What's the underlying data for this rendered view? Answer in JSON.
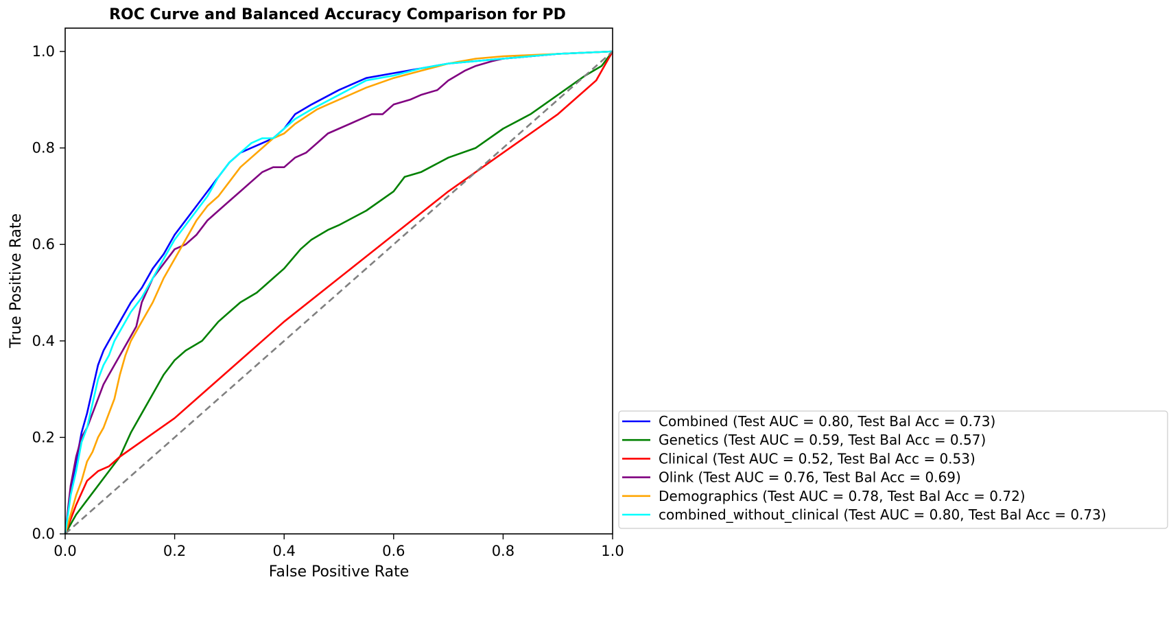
{
  "chart_data": {
    "type": "line",
    "title": "ROC Curve and Balanced Accuracy Comparison for PD",
    "xlabel": "False Positive Rate",
    "ylabel": "True Positive Rate",
    "xlim": [
      0.0,
      1.0
    ],
    "ylim": [
      0.0,
      1.0
    ],
    "xticks": [
      "0.0",
      "0.2",
      "0.4",
      "0.6",
      "0.8",
      "1.0"
    ],
    "yticks": [
      "0.0",
      "0.2",
      "0.4",
      "0.6",
      "0.8",
      "1.0"
    ],
    "grid": false,
    "legend_position": "lower-right, outside axes",
    "series": [
      {
        "name": "Combined (Test AUC = 0.80, Test Bal Acc = 0.73)",
        "color": "#0000ff",
        "x": [
          0,
          0.01,
          0.02,
          0.03,
          0.04,
          0.05,
          0.06,
          0.07,
          0.08,
          0.09,
          0.1,
          0.12,
          0.14,
          0.16,
          0.18,
          0.2,
          0.22,
          0.24,
          0.26,
          0.28,
          0.3,
          0.32,
          0.34,
          0.36,
          0.38,
          0.4,
          0.42,
          0.45,
          0.5,
          0.55,
          0.6,
          0.65,
          0.7,
          0.8,
          0.9,
          1.0
        ],
        "y": [
          0,
          0.09,
          0.15,
          0.21,
          0.25,
          0.3,
          0.35,
          0.38,
          0.4,
          0.42,
          0.44,
          0.48,
          0.51,
          0.55,
          0.58,
          0.62,
          0.65,
          0.68,
          0.71,
          0.74,
          0.77,
          0.79,
          0.8,
          0.81,
          0.82,
          0.84,
          0.87,
          0.89,
          0.92,
          0.945,
          0.955,
          0.965,
          0.975,
          0.985,
          0.995,
          1.0
        ]
      },
      {
        "name": "Genetics (Test AUC = 0.59, Test Bal Acc = 0.57)",
        "color": "#008000",
        "x": [
          0,
          0.02,
          0.04,
          0.06,
          0.08,
          0.1,
          0.12,
          0.14,
          0.16,
          0.18,
          0.2,
          0.22,
          0.25,
          0.28,
          0.3,
          0.32,
          0.35,
          0.38,
          0.4,
          0.43,
          0.45,
          0.48,
          0.5,
          0.55,
          0.6,
          0.62,
          0.65,
          0.7,
          0.75,
          0.8,
          0.85,
          0.9,
          0.95,
          0.98,
          1.0
        ],
        "y": [
          0,
          0.04,
          0.07,
          0.1,
          0.13,
          0.16,
          0.21,
          0.25,
          0.29,
          0.33,
          0.36,
          0.38,
          0.4,
          0.44,
          0.46,
          0.48,
          0.5,
          0.53,
          0.55,
          0.59,
          0.61,
          0.63,
          0.64,
          0.67,
          0.71,
          0.74,
          0.75,
          0.78,
          0.8,
          0.84,
          0.87,
          0.91,
          0.95,
          0.97,
          1.0
        ]
      },
      {
        "name": "Clinical (Test AUC = 0.52, Test Bal Acc = 0.53)",
        "color": "#ff0000",
        "x": [
          0,
          0.02,
          0.04,
          0.06,
          0.08,
          0.1,
          0.15,
          0.2,
          0.25,
          0.3,
          0.4,
          0.5,
          0.6,
          0.7,
          0.8,
          0.9,
          0.97,
          1.0
        ],
        "y": [
          0,
          0.06,
          0.11,
          0.13,
          0.14,
          0.16,
          0.2,
          0.24,
          0.29,
          0.34,
          0.44,
          0.53,
          0.62,
          0.71,
          0.79,
          0.87,
          0.94,
          1.0
        ]
      },
      {
        "name": "Olink (Test AUC = 0.76, Test Bal Acc = 0.69)",
        "color": "#800080",
        "x": [
          0,
          0.01,
          0.02,
          0.03,
          0.04,
          0.05,
          0.06,
          0.07,
          0.08,
          0.1,
          0.12,
          0.13,
          0.14,
          0.16,
          0.18,
          0.2,
          0.22,
          0.24,
          0.26,
          0.28,
          0.3,
          0.32,
          0.34,
          0.36,
          0.38,
          0.4,
          0.42,
          0.44,
          0.46,
          0.48,
          0.5,
          0.52,
          0.54,
          0.56,
          0.58,
          0.6,
          0.63,
          0.65,
          0.68,
          0.7,
          0.73,
          0.75,
          0.78,
          0.8,
          0.85,
          0.9,
          1.0
        ],
        "y": [
          0,
          0.1,
          0.16,
          0.2,
          0.22,
          0.25,
          0.28,
          0.31,
          0.33,
          0.37,
          0.41,
          0.43,
          0.48,
          0.53,
          0.56,
          0.59,
          0.6,
          0.62,
          0.65,
          0.67,
          0.69,
          0.71,
          0.73,
          0.75,
          0.76,
          0.76,
          0.78,
          0.79,
          0.81,
          0.83,
          0.84,
          0.85,
          0.86,
          0.87,
          0.87,
          0.89,
          0.9,
          0.91,
          0.92,
          0.94,
          0.96,
          0.97,
          0.98,
          0.985,
          0.99,
          0.995,
          1.0
        ]
      },
      {
        "name": "Demographics (Test AUC = 0.78, Test Bal Acc = 0.72)",
        "color": "#ffa500",
        "x": [
          0,
          0.01,
          0.02,
          0.03,
          0.04,
          0.05,
          0.06,
          0.07,
          0.08,
          0.09,
          0.1,
          0.11,
          0.12,
          0.14,
          0.16,
          0.18,
          0.2,
          0.22,
          0.24,
          0.26,
          0.28,
          0.3,
          0.32,
          0.34,
          0.36,
          0.38,
          0.4,
          0.42,
          0.44,
          0.46,
          0.48,
          0.5,
          0.55,
          0.6,
          0.65,
          0.7,
          0.75,
          0.8,
          0.9,
          1.0
        ],
        "y": [
          0,
          0.04,
          0.08,
          0.11,
          0.15,
          0.17,
          0.2,
          0.22,
          0.25,
          0.28,
          0.33,
          0.37,
          0.4,
          0.44,
          0.48,
          0.53,
          0.57,
          0.61,
          0.65,
          0.68,
          0.7,
          0.73,
          0.76,
          0.78,
          0.8,
          0.82,
          0.83,
          0.85,
          0.865,
          0.88,
          0.89,
          0.9,
          0.925,
          0.945,
          0.96,
          0.975,
          0.985,
          0.99,
          0.995,
          1.0
        ]
      },
      {
        "name": "combined_without_clinical (Test AUC = 0.80, Test Bal Acc = 0.73)",
        "color": "#00ffff",
        "x": [
          0,
          0.01,
          0.02,
          0.03,
          0.04,
          0.05,
          0.06,
          0.07,
          0.08,
          0.09,
          0.1,
          0.12,
          0.14,
          0.16,
          0.18,
          0.2,
          0.22,
          0.24,
          0.26,
          0.28,
          0.3,
          0.32,
          0.34,
          0.36,
          0.38,
          0.4,
          0.42,
          0.45,
          0.5,
          0.55,
          0.6,
          0.65,
          0.7,
          0.8,
          0.9,
          1.0
        ],
        "y": [
          0,
          0.08,
          0.13,
          0.19,
          0.22,
          0.27,
          0.32,
          0.35,
          0.37,
          0.4,
          0.42,
          0.46,
          0.49,
          0.53,
          0.57,
          0.61,
          0.64,
          0.67,
          0.7,
          0.74,
          0.77,
          0.79,
          0.81,
          0.82,
          0.82,
          0.84,
          0.86,
          0.88,
          0.91,
          0.94,
          0.95,
          0.965,
          0.975,
          0.985,
          0.995,
          1.0
        ]
      }
    ],
    "reference_line": {
      "x": [
        0,
        1
      ],
      "y": [
        0,
        1
      ],
      "color": "#808080",
      "style": "dashed"
    }
  }
}
